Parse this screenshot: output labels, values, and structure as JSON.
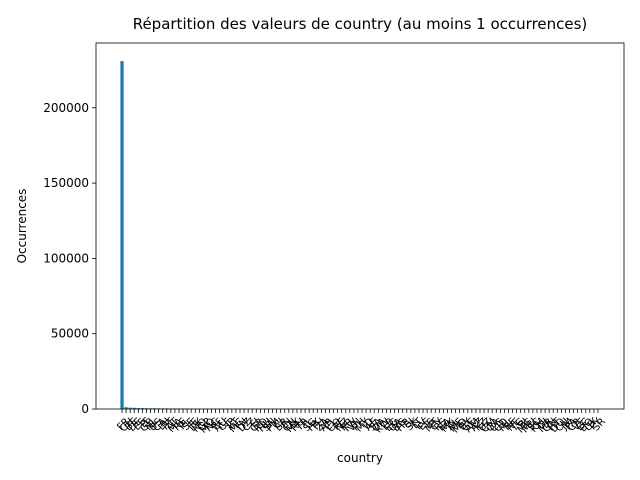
{
  "chart_data": {
    "type": "bar",
    "title": "Répartition des valeurs de country (au moins 1 occurrences)",
    "xlabel": "country",
    "ylabel": "Occurrences",
    "ylim": [
      0,
      243000
    ],
    "yticks": [
      0,
      50000,
      100000,
      150000,
      200000
    ],
    "ytick_labels": [
      "0",
      "50000",
      "100000",
      "150000",
      "200000"
    ],
    "grid": false,
    "legend": "none",
    "color": "#1f77b4",
    "categories": [
      "FR",
      "CH",
      "BE",
      "DE",
      "ES",
      "IT",
      "GB",
      "NL",
      "US",
      "CA",
      "LU",
      "PT",
      "AT",
      "MA",
      "RE",
      "PL",
      "SE",
      "IE",
      "DK",
      "NO",
      "GP",
      "MQ",
      "NC",
      "PF",
      "AU",
      "GF",
      "JP",
      "YT",
      "MC",
      "TN",
      "DZ",
      "CZ",
      "FI",
      "GR",
      "RO",
      "HU",
      "SN",
      "PM",
      "CI",
      "BR",
      "IN",
      "CN",
      "MX",
      "RU",
      "TR",
      "IL",
      "SG",
      "HK",
      "TH",
      "ZA",
      "AR",
      "CL",
      "CO",
      "PE",
      "NZ",
      "KR",
      "TW",
      "VN",
      "PH",
      "MY",
      "ID",
      "AE",
      "SA",
      "QA",
      "KW",
      "LB",
      "EG",
      "UA",
      "BG",
      "HR",
      "SI",
      "SK",
      "LT",
      "LV",
      "EE",
      "IS",
      "MT",
      "CY",
      "RS",
      "BA",
      "MK",
      "AL",
      "ME",
      "MD",
      "BY",
      "GE",
      "AM",
      "AZ",
      "KZ",
      "UZ",
      "CM",
      "GA",
      "CG",
      "CD",
      "ML",
      "BF",
      "NE",
      "TG",
      "BJ",
      "MG",
      "MU",
      "SC",
      "KM",
      "DJ",
      "MR",
      "GN",
      "HT",
      "DO",
      "CU",
      "JM",
      "PA",
      "CR",
      "VE",
      "EC",
      "BO",
      "UY",
      "PY",
      "SR"
    ],
    "values": [
      231000,
      1200,
      900,
      800,
      650,
      600,
      550,
      500,
      480,
      450,
      420,
      400,
      380,
      360,
      340,
      320,
      300,
      280,
      260,
      240,
      220,
      200,
      190,
      180,
      170,
      160,
      150,
      140,
      130,
      120,
      110,
      100,
      95,
      90,
      85,
      80,
      75,
      70,
      65,
      60,
      55,
      50,
      48,
      46,
      44,
      42,
      40,
      38,
      36,
      34,
      32,
      30,
      28,
      26,
      24,
      22,
      20,
      19,
      18,
      17,
      16,
      15,
      14,
      13,
      12,
      11,
      10,
      10,
      9,
      9,
      8,
      8,
      7,
      7,
      6,
      6,
      6,
      5,
      5,
      5,
      4,
      4,
      4,
      4,
      3,
      3,
      3,
      3,
      3,
      2,
      2,
      2,
      2,
      2,
      2,
      2,
      2,
      1,
      1,
      1,
      1,
      1,
      1,
      1,
      1,
      1,
      1,
      1,
      1,
      1,
      1,
      1,
      1,
      1,
      1,
      1,
      1,
      1
    ]
  }
}
